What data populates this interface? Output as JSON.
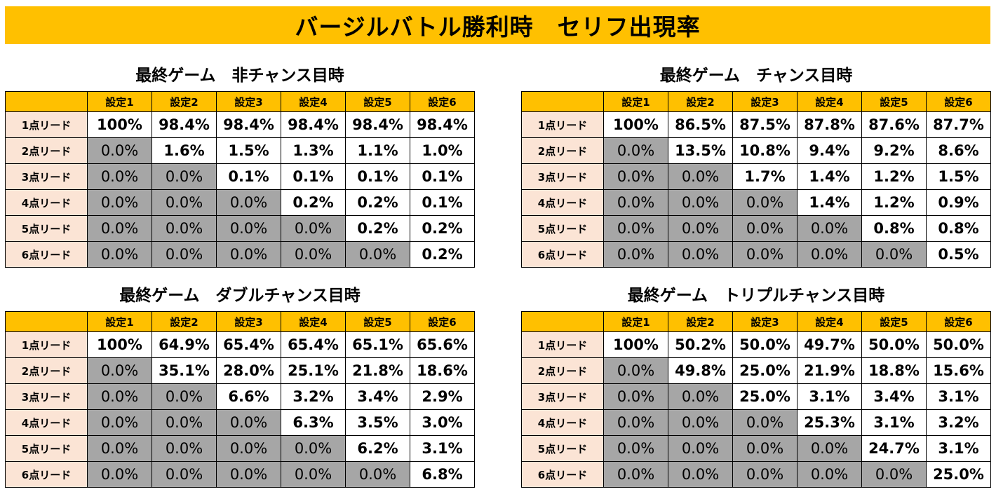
{
  "title": "バージルバトル勝利時　セリフ出現率",
  "columns": [
    "設定1",
    "設定2",
    "設定3",
    "設定4",
    "設定5",
    "設定6"
  ],
  "row_labels": [
    "1点リード",
    "2点リード",
    "3点リード",
    "4点リード",
    "5点リード",
    "6点リード"
  ],
  "tables": [
    {
      "title": "最終ゲーム　非チャンス目時",
      "rows": [
        [
          "100%",
          "98.4%",
          "98.4%",
          "98.4%",
          "98.4%",
          "98.4%"
        ],
        [
          "0.0%",
          "1.6%",
          "1.5%",
          "1.3%",
          "1.1%",
          "1.0%"
        ],
        [
          "0.0%",
          "0.0%",
          "0.1%",
          "0.1%",
          "0.1%",
          "0.1%"
        ],
        [
          "0.0%",
          "0.0%",
          "0.0%",
          "0.2%",
          "0.2%",
          "0.1%"
        ],
        [
          "0.0%",
          "0.0%",
          "0.0%",
          "0.0%",
          "0.2%",
          "0.2%"
        ],
        [
          "0.0%",
          "0.0%",
          "0.0%",
          "0.0%",
          "0.0%",
          "0.2%"
        ]
      ]
    },
    {
      "title": "最終ゲーム　チャンス目時",
      "rows": [
        [
          "100%",
          "86.5%",
          "87.5%",
          "87.8%",
          "87.6%",
          "87.7%"
        ],
        [
          "0.0%",
          "13.5%",
          "10.8%",
          "9.4%",
          "9.2%",
          "8.6%"
        ],
        [
          "0.0%",
          "0.0%",
          "1.7%",
          "1.4%",
          "1.2%",
          "1.5%"
        ],
        [
          "0.0%",
          "0.0%",
          "0.0%",
          "1.4%",
          "1.2%",
          "0.9%"
        ],
        [
          "0.0%",
          "0.0%",
          "0.0%",
          "0.0%",
          "0.8%",
          "0.8%"
        ],
        [
          "0.0%",
          "0.0%",
          "0.0%",
          "0.0%",
          "0.0%",
          "0.5%"
        ]
      ]
    },
    {
      "title": "最終ゲーム　ダブルチャンス目時",
      "rows": [
        [
          "100%",
          "64.9%",
          "65.4%",
          "65.4%",
          "65.1%",
          "65.6%"
        ],
        [
          "0.0%",
          "35.1%",
          "28.0%",
          "25.1%",
          "21.8%",
          "18.6%"
        ],
        [
          "0.0%",
          "0.0%",
          "6.6%",
          "3.2%",
          "3.4%",
          "2.9%"
        ],
        [
          "0.0%",
          "0.0%",
          "0.0%",
          "6.3%",
          "3.5%",
          "3.0%"
        ],
        [
          "0.0%",
          "0.0%",
          "0.0%",
          "0.0%",
          "6.2%",
          "3.1%"
        ],
        [
          "0.0%",
          "0.0%",
          "0.0%",
          "0.0%",
          "0.0%",
          "6.8%"
        ]
      ]
    },
    {
      "title": "最終ゲーム　トリプルチャンス目時",
      "rows": [
        [
          "100%",
          "50.2%",
          "50.0%",
          "49.7%",
          "50.0%",
          "50.0%"
        ],
        [
          "0.0%",
          "49.8%",
          "25.0%",
          "21.9%",
          "18.8%",
          "15.6%"
        ],
        [
          "0.0%",
          "0.0%",
          "25.0%",
          "3.1%",
          "3.4%",
          "3.1%"
        ],
        [
          "0.0%",
          "0.0%",
          "0.0%",
          "25.3%",
          "3.1%",
          "3.2%"
        ],
        [
          "0.0%",
          "0.0%",
          "0.0%",
          "0.0%",
          "24.7%",
          "3.1%"
        ],
        [
          "0.0%",
          "0.0%",
          "0.0%",
          "0.0%",
          "0.0%",
          "25.0%"
        ]
      ]
    }
  ]
}
